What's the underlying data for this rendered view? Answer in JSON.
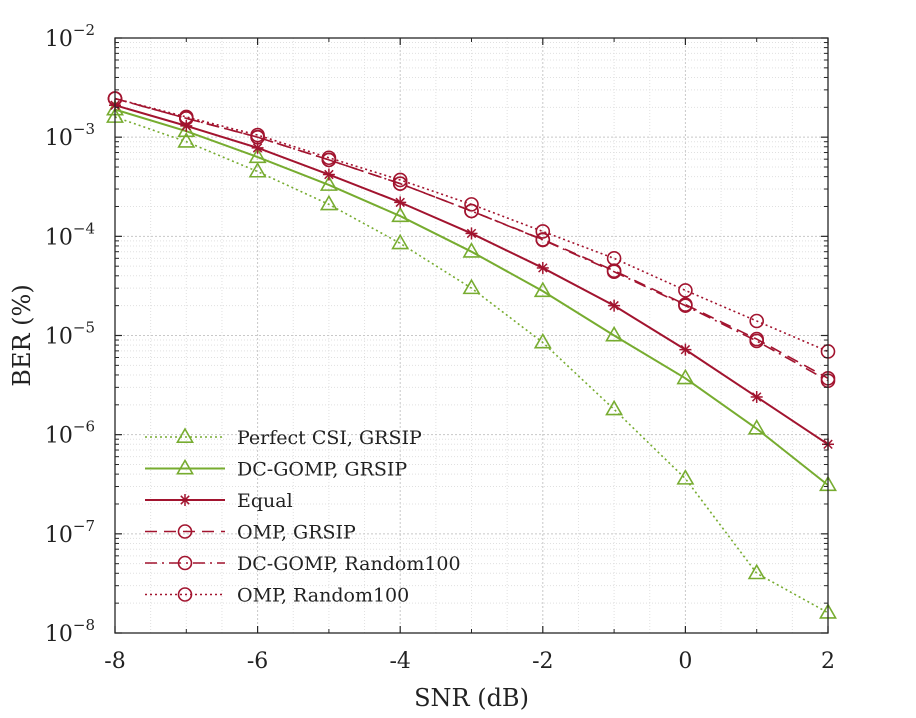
{
  "chart_data": {
    "type": "line",
    "title": "",
    "xlabel": "SNR (dB)",
    "ylabel": "BER (%)",
    "xlim": [
      -8,
      2
    ],
    "ylim": [
      1e-08,
      0.01
    ],
    "yscale": "log",
    "grid": true,
    "minor_grid": true,
    "legend_position": "bottom-left",
    "x_ticks": [
      -8,
      -6,
      -4,
      -2,
      0,
      2
    ],
    "x_tick_labels": [
      "-8",
      "-6",
      "-4",
      "-2",
      "0",
      "2"
    ],
    "y_tick_exponents": [
      -8,
      -7,
      -6,
      -5,
      -4,
      -3,
      -2
    ],
    "y_tick_base": "10",
    "colors": {
      "green": "#77ac30",
      "red": "#a2142f"
    },
    "series": [
      {
        "name": "Perfect CSI, GRSIP",
        "color": "#77ac30",
        "dash": "dotted",
        "marker": "triangle",
        "x": [
          -8,
          -7,
          -6,
          -5,
          -4,
          -3,
          -2,
          -1,
          0,
          1,
          2
        ],
        "y": [
          0.0016,
          0.0009,
          0.00045,
          0.00021,
          8.5e-05,
          3e-05,
          8.5e-06,
          1.8e-06,
          3.6e-07,
          4e-08,
          1.6e-08
        ]
      },
      {
        "name": "DC-GOMP, GRSIP",
        "color": "#77ac30",
        "dash": "solid",
        "marker": "triangle",
        "x": [
          -8,
          -7,
          -6,
          -5,
          -4,
          -3,
          -2,
          -1,
          0,
          1,
          2
        ],
        "y": [
          0.0019,
          0.00115,
          0.00063,
          0.00033,
          0.00016,
          7e-05,
          2.8e-05,
          1e-05,
          3.7e-06,
          1.15e-06,
          3.1e-07
        ]
      },
      {
        "name": "Equal",
        "color": "#a2142f",
        "dash": "solid",
        "marker": "star",
        "x": [
          -8,
          -7,
          -6,
          -5,
          -4,
          -3,
          -2,
          -1,
          0,
          1,
          2
        ],
        "y": [
          0.0021,
          0.0013,
          0.00078,
          0.00042,
          0.00022,
          0.000107,
          4.8e-05,
          2e-05,
          7.2e-06,
          2.4e-06,
          8e-07
        ]
      },
      {
        "name": "OMP, GRSIP",
        "color": "#a2142f",
        "dash": "dashed",
        "marker": "circle",
        "x": [
          -8,
          -7,
          -6,
          -5,
          -4,
          -3,
          -2,
          -1,
          0,
          1,
          2
        ],
        "y": [
          0.00245,
          0.00155,
          0.001,
          0.00059,
          0.00034,
          0.00018,
          9.3e-05,
          4.5e-05,
          2.05e-05,
          9.2e-06,
          3.7e-06
        ]
      },
      {
        "name": "DC-GOMP, Random100",
        "color": "#a2142f",
        "dash": "dashdot",
        "marker": "circle",
        "x": [
          -8,
          -7,
          -6,
          -5,
          -4,
          -3,
          -2,
          -1,
          0,
          1,
          2
        ],
        "y": [
          0.00245,
          0.00155,
          0.001,
          0.00059,
          0.00034,
          0.00018,
          9.2e-05,
          4.4e-05,
          2e-05,
          8.8e-06,
          3.5e-06
        ]
      },
      {
        "name": "OMP, Random100",
        "color": "#a2142f",
        "dash": "dotted",
        "marker": "circle",
        "x": [
          -8,
          -7,
          -6,
          -5,
          -4,
          -3,
          -2,
          -1,
          0,
          1,
          2
        ],
        "y": [
          0.00245,
          0.0016,
          0.00105,
          0.00062,
          0.00037,
          0.00021,
          0.000112,
          6e-05,
          2.85e-05,
          1.4e-05,
          6.9e-06
        ]
      }
    ]
  }
}
